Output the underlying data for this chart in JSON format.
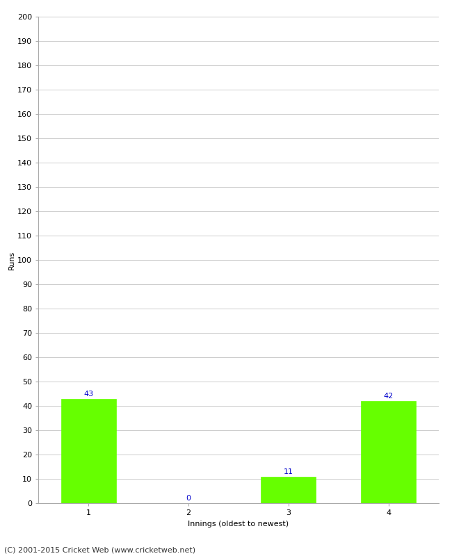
{
  "categories": [
    1,
    2,
    3,
    4
  ],
  "values": [
    43,
    0,
    11,
    42
  ],
  "bar_color": "#66ff00",
  "bar_edge_color": "#66ff00",
  "xlabel": "Innings (oldest to newest)",
  "ylabel": "Runs",
  "ylim": [
    0,
    200
  ],
  "yticks": [
    0,
    10,
    20,
    30,
    40,
    50,
    60,
    70,
    80,
    90,
    100,
    110,
    120,
    130,
    140,
    150,
    160,
    170,
    180,
    190,
    200
  ],
  "label_color": "#0000cc",
  "label_fontsize": 8,
  "footer_text": "(C) 2001-2015 Cricket Web (www.cricketweb.net)",
  "footer_fontsize": 8,
  "background_color": "#ffffff",
  "grid_color": "#cccccc",
  "bar_width": 0.55,
  "tick_fontsize": 8,
  "ylabel_fontsize": 8,
  "xlabel_fontsize": 8
}
